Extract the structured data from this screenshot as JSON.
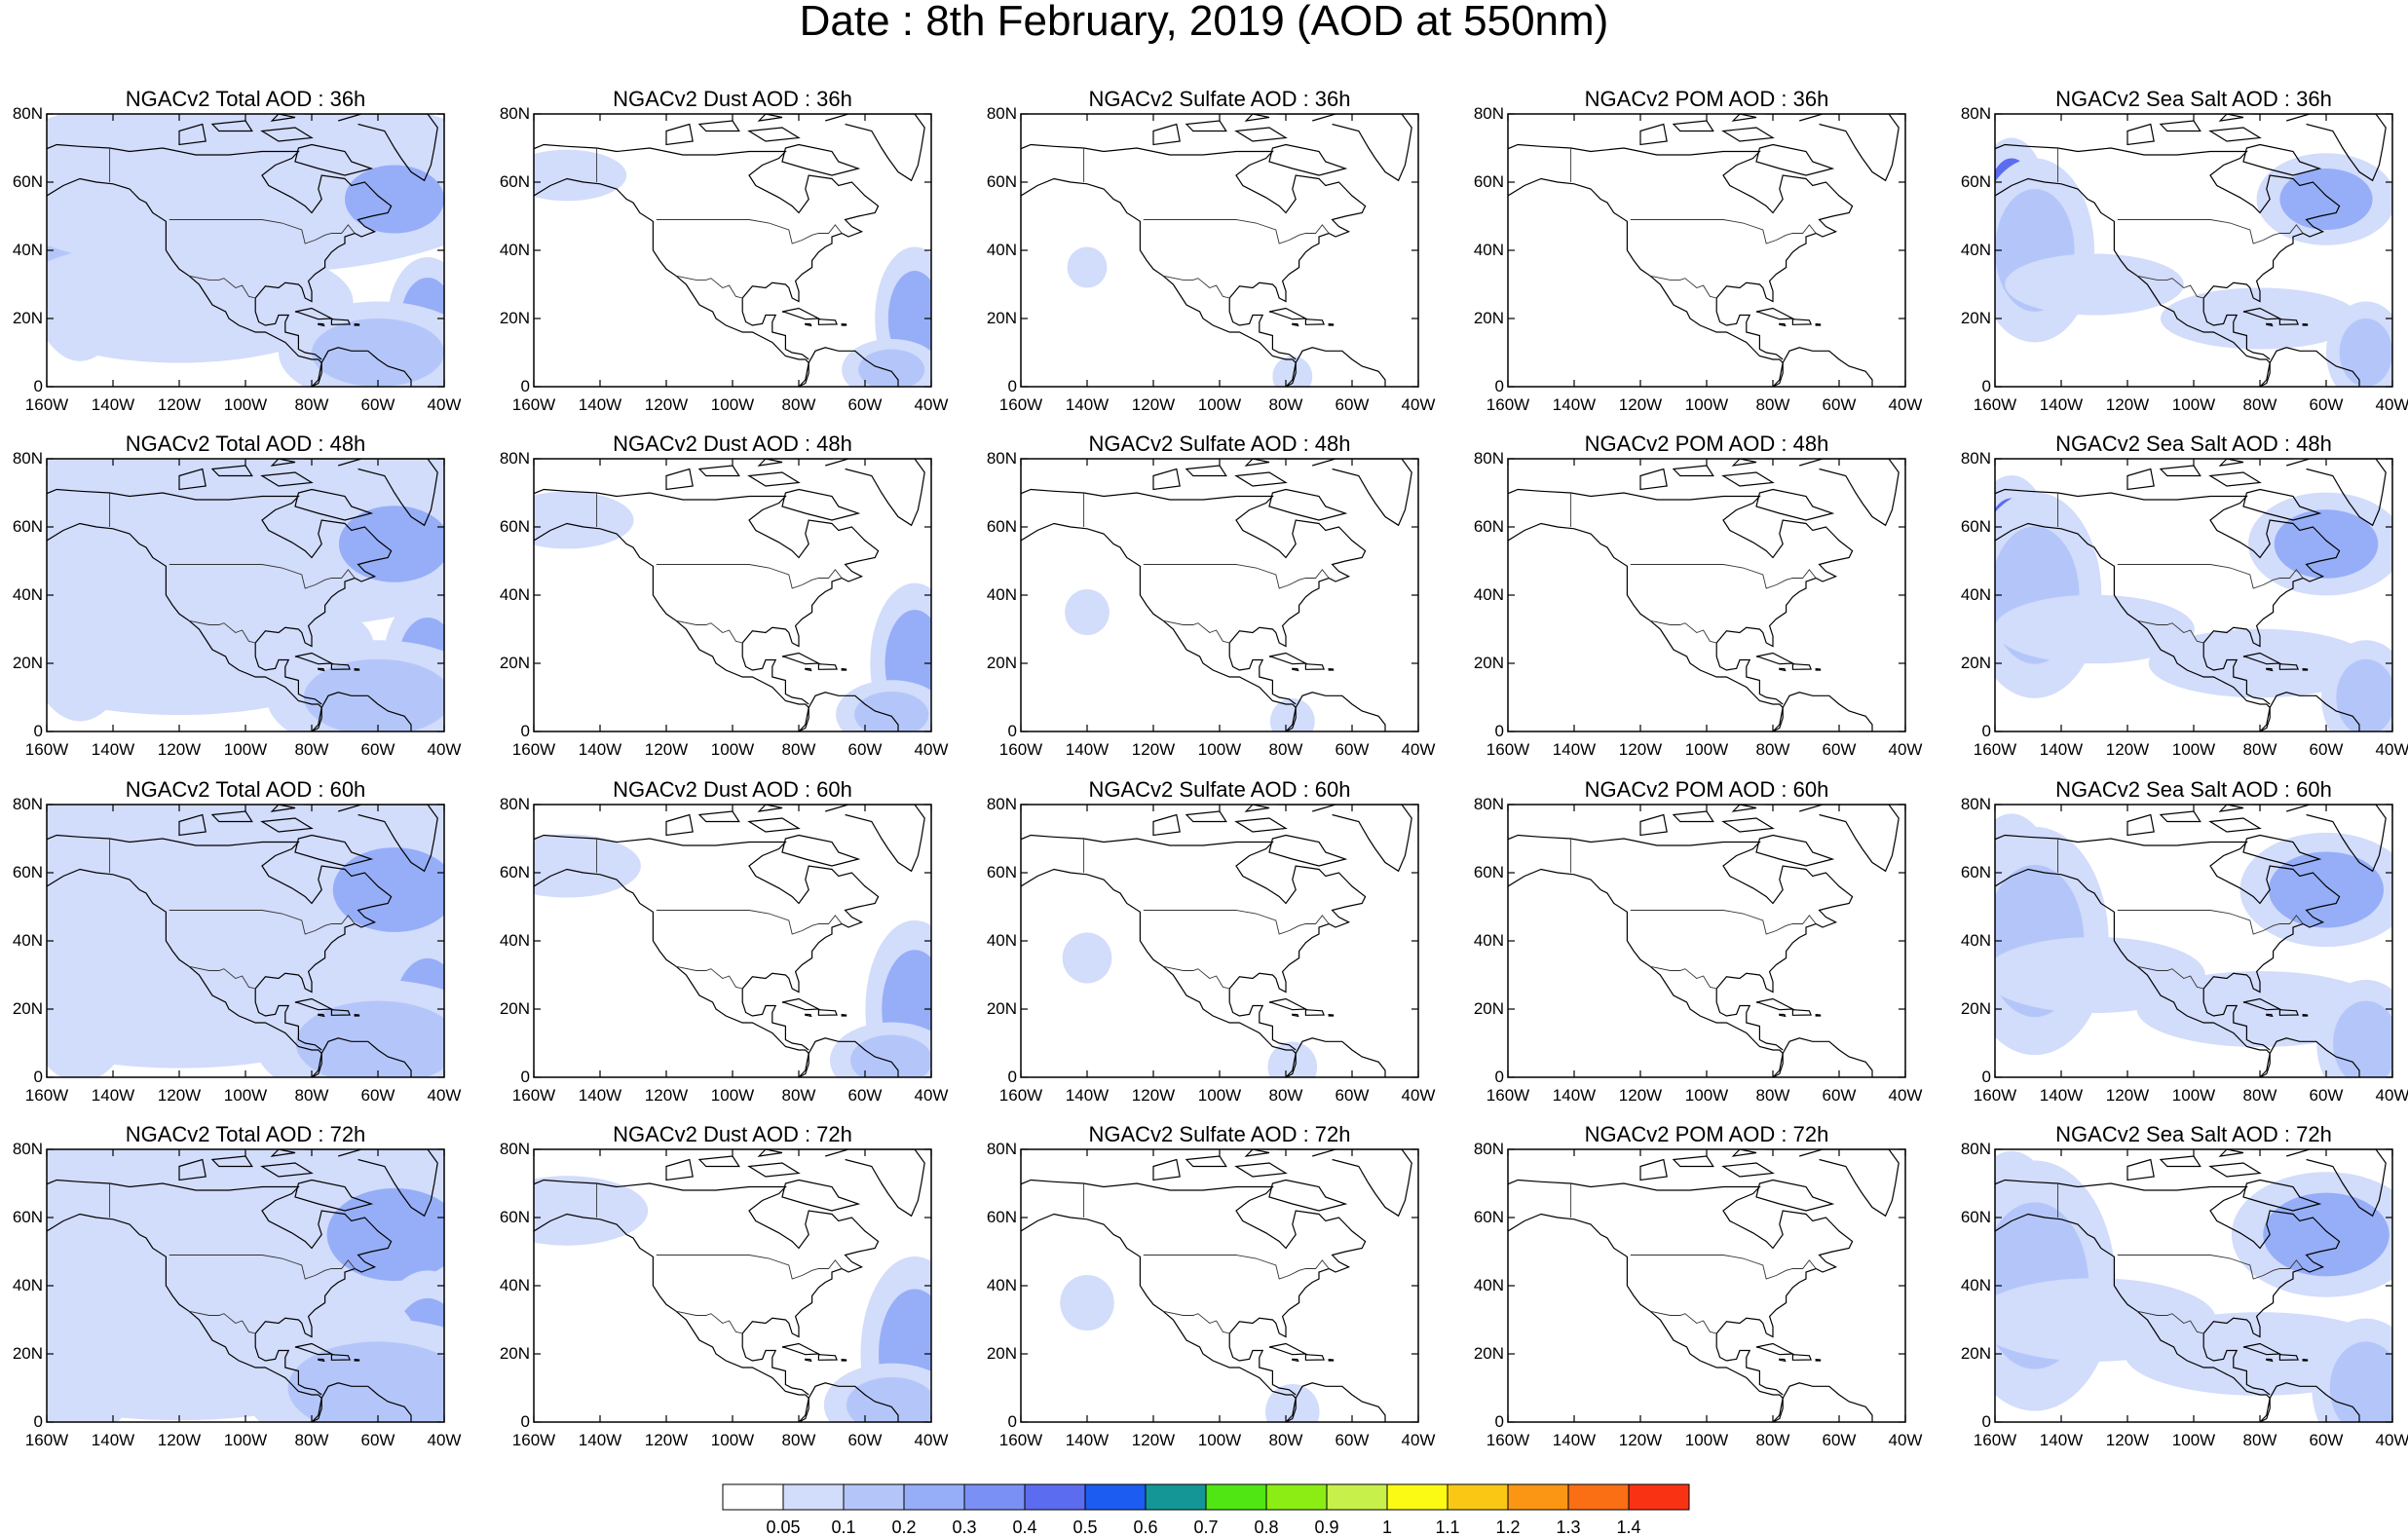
{
  "title": "Date : 8th February, 2019 (AOD at 550nm)",
  "chart_data": {
    "type": "heatmap",
    "description_rows": [
      "36h",
      "48h",
      "60h",
      "72h"
    ],
    "panels": [
      {
        "row": 0,
        "col": 0,
        "title": "NGACv2 Total AOD : 36h",
        "field": "total",
        "lead": "36h"
      },
      {
        "row": 0,
        "col": 1,
        "title": "NGACv2 Dust AOD : 36h",
        "field": "dust",
        "lead": "36h"
      },
      {
        "row": 0,
        "col": 2,
        "title": "NGACv2 Sulfate AOD : 36h",
        "field": "sulfate",
        "lead": "36h"
      },
      {
        "row": 0,
        "col": 3,
        "title": "NGACv2 POM AOD : 36h",
        "field": "pom",
        "lead": "36h"
      },
      {
        "row": 0,
        "col": 4,
        "title": "NGACv2 Sea Salt AOD : 36h",
        "field": "seasalt",
        "lead": "36h"
      },
      {
        "row": 1,
        "col": 0,
        "title": "NGACv2 Total AOD : 48h",
        "field": "total",
        "lead": "48h"
      },
      {
        "row": 1,
        "col": 1,
        "title": "NGACv2 Dust AOD : 48h",
        "field": "dust",
        "lead": "48h"
      },
      {
        "row": 1,
        "col": 2,
        "title": "NGACv2 Sulfate AOD : 48h",
        "field": "sulfate",
        "lead": "48h"
      },
      {
        "row": 1,
        "col": 3,
        "title": "NGACv2 POM AOD : 48h",
        "field": "pom",
        "lead": "48h"
      },
      {
        "row": 1,
        "col": 4,
        "title": "NGACv2 Sea Salt AOD : 48h",
        "field": "seasalt",
        "lead": "48h"
      },
      {
        "row": 2,
        "col": 0,
        "title": "NGACv2 Total AOD : 60h",
        "field": "total",
        "lead": "60h"
      },
      {
        "row": 2,
        "col": 1,
        "title": "NGACv2 Dust AOD : 60h",
        "field": "dust",
        "lead": "60h"
      },
      {
        "row": 2,
        "col": 2,
        "title": "NGACv2 Sulfate AOD : 60h",
        "field": "sulfate",
        "lead": "60h"
      },
      {
        "row": 2,
        "col": 3,
        "title": "NGACv2 POM AOD : 60h",
        "field": "pom",
        "lead": "60h"
      },
      {
        "row": 2,
        "col": 4,
        "title": "NGACv2 Sea Salt AOD : 60h",
        "field": "seasalt",
        "lead": "60h"
      },
      {
        "row": 3,
        "col": 0,
        "title": "NGACv2 Total AOD : 72h",
        "field": "total",
        "lead": "72h"
      },
      {
        "row": 3,
        "col": 1,
        "title": "NGACv2 Dust AOD : 72h",
        "field": "dust",
        "lead": "72h"
      },
      {
        "row": 3,
        "col": 2,
        "title": "NGACv2 Sulfate AOD : 72h",
        "field": "sulfate",
        "lead": "72h"
      },
      {
        "row": 3,
        "col": 3,
        "title": "NGACv2 POM AOD : 72h",
        "field": "pom",
        "lead": "72h"
      },
      {
        "row": 3,
        "col": 4,
        "title": "NGACv2 Sea Salt  AOD : 72h",
        "field": "seasalt",
        "lead": "72h"
      }
    ],
    "x_ticks": [
      "160W",
      "140W",
      "120W",
      "100W",
      "80W",
      "60W",
      "40W"
    ],
    "y_ticks": [
      "80N",
      "60N",
      "40N",
      "20N",
      "0"
    ],
    "xlim": [
      -160,
      -40
    ],
    "ylim": [
      0,
      80
    ],
    "colorbar": {
      "levels": [
        "0.05",
        "0.1",
        "0.2",
        "0.3",
        "0.4",
        "0.5",
        "0.6",
        "0.7",
        "0.8",
        "0.9",
        "1",
        "1.1",
        "1.2",
        "1.3",
        "1.4"
      ],
      "colors": [
        "#ffffff",
        "#d2dcfb",
        "#b4c6f9",
        "#96aef8",
        "#7a90f5",
        "#5c6cf0",
        "#1c5cf0",
        "#149696",
        "#50e614",
        "#8ced14",
        "#c8f04a",
        "#fafa14",
        "#fac814",
        "#fa9614",
        "#fa6e14",
        "#fa3214"
      ]
    },
    "blob_levels": {
      "light": 0.08,
      "mid": 0.15,
      "strong": 0.25,
      "peak": 0.45
    }
  }
}
